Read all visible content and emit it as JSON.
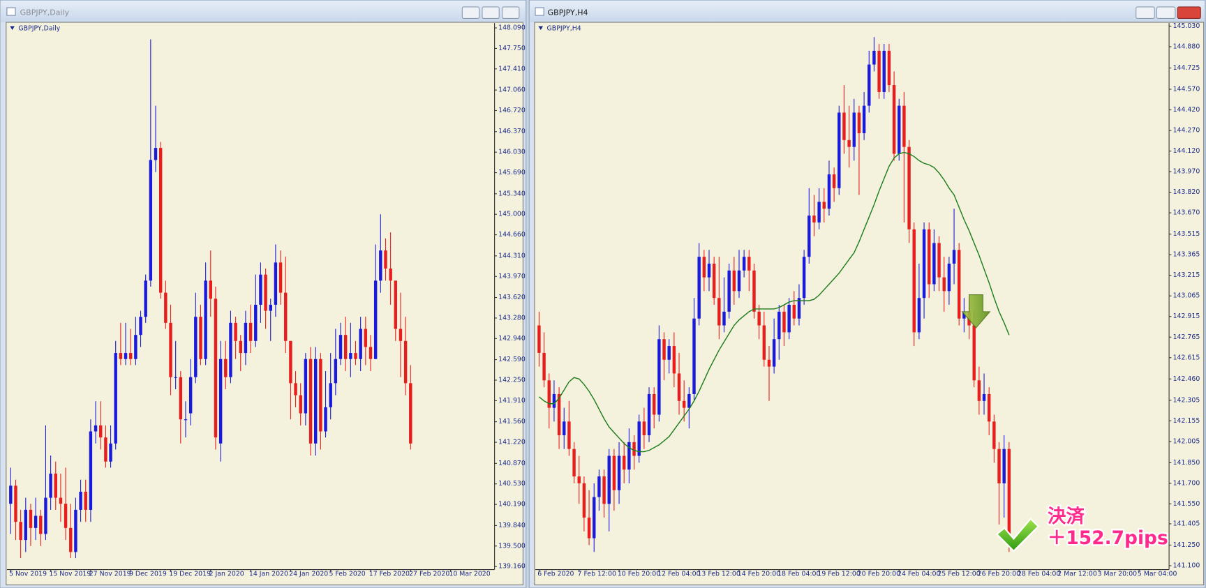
{
  "chart_data": [
    {
      "type": "candlestick",
      "window_title": "GBPJPY,Daily",
      "title": "GBPJPY,Daily",
      "up_color": "#1a1adb",
      "down_color": "#e81d1d",
      "xlim": [
        -0.6,
        96.8
      ],
      "xticks": [
        {
          "value": 0,
          "label": "5 Nov 2019"
        },
        {
          "value": 8,
          "label": "15 Nov 2019"
        },
        {
          "value": 16,
          "label": "27 Nov 2019"
        },
        {
          "value": 24,
          "label": "9 Dec 2019"
        },
        {
          "value": 32,
          "label": "19 Dec 2019"
        },
        {
          "value": 40,
          "label": "2 Jan 2020"
        },
        {
          "value": 48,
          "label": "14 Jan 2020"
        },
        {
          "value": 56,
          "label": "24 Jan 2020"
        },
        {
          "value": 64,
          "label": "5 Feb 2020"
        },
        {
          "value": 72,
          "label": "17 Feb 2020"
        },
        {
          "value": 80,
          "label": "27 Feb 2020"
        },
        {
          "value": 88,
          "label": "10 Mar 2020"
        }
      ],
      "ylim": [
        139.11,
        148.17
      ],
      "yticks": [
        {
          "value": 148.09,
          "label": "148.090"
        },
        {
          "value": 147.75,
          "label": "147.750"
        },
        {
          "value": 147.41,
          "label": "147.410"
        },
        {
          "value": 147.06,
          "label": "147.060"
        },
        {
          "value": 146.72,
          "label": "146.720"
        },
        {
          "value": 146.37,
          "label": "146.370"
        },
        {
          "value": 146.03,
          "label": "146.030"
        },
        {
          "value": 145.69,
          "label": "145.690"
        },
        {
          "value": 145.34,
          "label": "145.340"
        },
        {
          "value": 145.0,
          "label": "145.000"
        },
        {
          "value": 144.66,
          "label": "144.660"
        },
        {
          "value": 144.31,
          "label": "144.310"
        },
        {
          "value": 143.97,
          "label": "143.970"
        },
        {
          "value": 143.62,
          "label": "143.620"
        },
        {
          "value": 143.28,
          "label": "143.280"
        },
        {
          "value": 142.94,
          "label": "142.940"
        },
        {
          "value": 142.59,
          "label": "142.590"
        },
        {
          "value": 142.25,
          "label": "142.250"
        },
        {
          "value": 141.91,
          "label": "141.910"
        },
        {
          "value": 141.56,
          "label": "141.560"
        },
        {
          "value": 141.22,
          "label": "141.220"
        },
        {
          "value": 140.87,
          "label": "140.870"
        },
        {
          "value": 140.53,
          "label": "140.530"
        },
        {
          "value": 140.19,
          "label": "140.190"
        },
        {
          "value": 139.84,
          "label": "139.840"
        },
        {
          "value": 139.5,
          "label": "139.500"
        },
        {
          "value": 139.16,
          "label": "139.160"
        }
      ],
      "open": [
        140.2,
        140.5,
        139.9,
        139.6,
        140.1,
        139.8,
        140.0,
        139.7,
        140.3,
        140.7,
        140.3,
        140.2,
        139.8,
        139.4,
        140.1,
        140.4,
        140.1,
        141.4,
        141.5,
        141.3,
        140.9,
        141.2,
        142.7,
        142.6,
        142.7,
        142.6,
        143.0,
        143.3,
        143.9,
        145.9,
        146.1,
        143.7,
        143.2,
        142.3,
        142.3,
        141.6,
        141.7,
        142.3,
        143.3,
        142.6,
        143.9,
        143.6,
        141.2,
        142.6,
        142.3,
        143.2,
        142.9,
        142.7,
        143.2,
        142.9,
        143.5,
        144.0,
        143.4,
        143.5,
        144.2,
        143.7,
        142.9,
        142.2,
        142.0,
        141.7,
        142.6,
        141.2,
        142.6,
        141.4,
        141.8,
        142.2,
        142.6,
        143.0,
        142.6,
        142.7,
        142.6,
        143.1,
        142.8,
        142.6,
        143.9,
        144.4,
        144.1,
        143.9,
        143.1,
        142.9,
        142.2
      ],
      "high": [
        140.8,
        140.6,
        140.1,
        140.3,
        140.2,
        140.3,
        140.1,
        141.5,
        141.0,
        140.9,
        140.7,
        140.8,
        140.2,
        140.3,
        140.6,
        140.6,
        141.6,
        141.9,
        141.9,
        141.5,
        141.5,
        142.9,
        143.2,
        143.2,
        143.1,
        143.3,
        143.4,
        144.0,
        147.9,
        146.8,
        146.2,
        143.9,
        143.5,
        142.9,
        142.4,
        141.9,
        142.6,
        143.7,
        143.5,
        144.2,
        144.4,
        143.8,
        142.9,
        142.9,
        143.4,
        143.3,
        143.0,
        143.4,
        143.5,
        144.0,
        144.2,
        144.1,
        143.6,
        144.5,
        144.4,
        144.3,
        142.9,
        142.4,
        142.2,
        142.7,
        142.8,
        142.8,
        142.7,
        142.4,
        142.7,
        143.1,
        143.2,
        143.3,
        143.2,
        142.9,
        143.3,
        143.3,
        143.0,
        144.5,
        145.0,
        144.6,
        144.7,
        143.9,
        143.7,
        143.3,
        142.5
      ],
      "low": [
        139.7,
        139.6,
        139.3,
        139.4,
        139.5,
        139.6,
        139.5,
        139.6,
        140.1,
        140.1,
        139.9,
        139.6,
        139.3,
        139.3,
        139.9,
        139.9,
        139.9,
        141.2,
        141.1,
        140.8,
        140.8,
        141.1,
        142.5,
        142.5,
        142.5,
        142.5,
        142.8,
        143.2,
        143.8,
        145.7,
        143.6,
        143.1,
        142.0,
        142.1,
        141.2,
        141.3,
        141.5,
        142.2,
        142.5,
        142.5,
        143.3,
        141.1,
        140.9,
        142.1,
        142.2,
        142.6,
        142.4,
        142.5,
        142.7,
        142.8,
        143.2,
        143.1,
        142.9,
        143.3,
        143.5,
        142.7,
        141.6,
        141.8,
        141.5,
        141.5,
        141.0,
        141.0,
        141.1,
        141.3,
        141.6,
        142.0,
        142.5,
        142.4,
        142.3,
        142.5,
        142.4,
        142.5,
        142.4,
        142.6,
        143.7,
        143.9,
        143.5,
        142.9,
        142.3,
        142.0,
        141.1
      ],
      "close": [
        140.5,
        139.9,
        139.6,
        140.1,
        139.8,
        140.0,
        139.7,
        140.3,
        140.7,
        140.3,
        140.2,
        139.8,
        139.4,
        140.1,
        140.4,
        140.1,
        141.4,
        141.5,
        141.3,
        140.9,
        141.2,
        142.7,
        142.6,
        142.7,
        142.6,
        143.0,
        143.3,
        143.9,
        145.9,
        146.1,
        143.7,
        143.2,
        142.3,
        142.3,
        141.6,
        141.6,
        142.3,
        143.3,
        142.6,
        143.9,
        143.6,
        141.3,
        142.6,
        142.3,
        143.2,
        142.9,
        142.7,
        143.2,
        142.9,
        143.5,
        144.0,
        143.4,
        143.5,
        144.2,
        143.7,
        142.9,
        142.2,
        142.0,
        141.7,
        142.6,
        141.2,
        142.6,
        141.4,
        141.8,
        142.2,
        142.6,
        143.0,
        142.6,
        142.7,
        142.6,
        143.1,
        142.8,
        142.6,
        143.9,
        144.4,
        144.1,
        143.9,
        143.1,
        142.9,
        142.2,
        141.2
      ]
    },
    {
      "type": "candlestick",
      "window_title": "GBPJPY,H4",
      "title": "GBPJPY,H4",
      "up_color": "#1a1adb",
      "down_color": "#e81d1d",
      "xlim": [
        -0.6,
        126.0
      ],
      "xticks": [
        {
          "value": 0,
          "label": "6 Feb 2020"
        },
        {
          "value": 8,
          "label": "7 Feb 12:00"
        },
        {
          "value": 16,
          "label": "10 Feb 20:00"
        },
        {
          "value": 24,
          "label": "12 Feb 04:00"
        },
        {
          "value": 32,
          "label": "13 Feb 12:00"
        },
        {
          "value": 40,
          "label": "14 Feb 20:00"
        },
        {
          "value": 48,
          "label": "18 Feb 04:00"
        },
        {
          "value": 56,
          "label": "19 Feb 12:00"
        },
        {
          "value": 64,
          "label": "20 Feb 20:00"
        },
        {
          "value": 72,
          "label": "24 Feb 04:00"
        },
        {
          "value": 80,
          "label": "25 Feb 12:00"
        },
        {
          "value": 88,
          "label": "26 Feb 20:00"
        },
        {
          "value": 96,
          "label": "28 Feb 04:00"
        },
        {
          "value": 104,
          "label": "2 Mar 12:00"
        },
        {
          "value": 112,
          "label": "3 Mar 20:00"
        },
        {
          "value": 120,
          "label": "5 Mar 04:00"
        }
      ],
      "ylim": [
        141.072,
        145.052
      ],
      "yticks": [
        {
          "value": 145.03,
          "label": "145.030"
        },
        {
          "value": 144.88,
          "label": "144.880"
        },
        {
          "value": 144.725,
          "label": "144.725"
        },
        {
          "value": 144.57,
          "label": "144.570"
        },
        {
          "value": 144.42,
          "label": "144.420"
        },
        {
          "value": 144.27,
          "label": "144.270"
        },
        {
          "value": 144.12,
          "label": "144.120"
        },
        {
          "value": 143.97,
          "label": "143.970"
        },
        {
          "value": 143.82,
          "label": "143.820"
        },
        {
          "value": 143.67,
          "label": "143.670"
        },
        {
          "value": 143.515,
          "label": "143.515"
        },
        {
          "value": 143.365,
          "label": "143.365"
        },
        {
          "value": 143.215,
          "label": "143.215"
        },
        {
          "value": 143.065,
          "label": "143.065"
        },
        {
          "value": 142.915,
          "label": "142.915"
        },
        {
          "value": 142.765,
          "label": "142.765"
        },
        {
          "value": 142.615,
          "label": "142.615"
        },
        {
          "value": 142.46,
          "label": "142.460"
        },
        {
          "value": 142.305,
          "label": "142.305"
        },
        {
          "value": 142.155,
          "label": "142.155"
        },
        {
          "value": 142.005,
          "label": "142.005"
        },
        {
          "value": 141.85,
          "label": "141.850"
        },
        {
          "value": 141.7,
          "label": "141.700"
        },
        {
          "value": 141.55,
          "label": "141.550"
        },
        {
          "value": 141.405,
          "label": "141.405"
        },
        {
          "value": 141.25,
          "label": "141.250"
        },
        {
          "value": 141.1,
          "label": "141.100"
        }
      ],
      "open": [
        142.85,
        142.65,
        142.45,
        142.25,
        142.35,
        142.05,
        142.15,
        141.95,
        141.75,
        141.7,
        141.45,
        141.3,
        141.6,
        141.75,
        141.55,
        141.9,
        141.65,
        141.9,
        141.8,
        142.0,
        141.9,
        142.15,
        142.05,
        142.35,
        142.2,
        142.75,
        142.6,
        142.7,
        142.5,
        142.3,
        142.25,
        142.35,
        142.9,
        143.35,
        143.2,
        143.3,
        143.05,
        142.85,
        142.95,
        143.25,
        143.1,
        143.25,
        143.35,
        143.25,
        142.95,
        142.85,
        142.6,
        142.55,
        142.75,
        142.95,
        142.8,
        143.0,
        142.9,
        143.05,
        143.35,
        143.65,
        143.6,
        143.75,
        143.7,
        143.95,
        143.85,
        144.4,
        144.2,
        144.15,
        144.4,
        144.25,
        144.45,
        144.75,
        144.85,
        144.55,
        144.85,
        144.6,
        144.1,
        144.45,
        144.15,
        143.55,
        142.8,
        143.05,
        143.55,
        143.15,
        143.45,
        143.2,
        143.1,
        143.3,
        143.4,
        142.9,
        142.95,
        142.85,
        142.45,
        142.3,
        142.35,
        142.15,
        141.95,
        141.7,
        141.95
      ],
      "high": [
        142.95,
        142.8,
        142.5,
        142.45,
        142.4,
        142.25,
        142.3,
        142.0,
        141.9,
        141.75,
        141.65,
        141.7,
        141.8,
        141.8,
        141.95,
        141.95,
        142.0,
        142.0,
        142.1,
        142.05,
        142.2,
        142.25,
        142.4,
        142.4,
        142.85,
        142.8,
        142.75,
        142.8,
        142.65,
        142.45,
        142.4,
        143.05,
        143.45,
        143.4,
        143.4,
        143.35,
        143.35,
        143.2,
        143.3,
        143.35,
        143.4,
        143.4,
        143.4,
        143.3,
        143.0,
        142.95,
        142.7,
        142.9,
        143.0,
        143.0,
        143.05,
        143.1,
        143.15,
        143.4,
        143.85,
        143.8,
        143.85,
        143.85,
        144.05,
        144.0,
        144.45,
        144.6,
        144.45,
        144.5,
        144.45,
        144.55,
        144.85,
        144.95,
        144.9,
        144.9,
        144.9,
        144.7,
        144.5,
        144.55,
        144.2,
        143.6,
        143.3,
        143.6,
        143.6,
        143.55,
        143.5,
        143.35,
        143.35,
        143.7,
        143.45,
        143.05,
        143.05,
        142.95,
        142.55,
        142.5,
        142.4,
        142.2,
        142.0,
        142.05,
        142.0
      ],
      "low": [
        142.55,
        142.4,
        142.1,
        142.15,
        141.95,
        141.95,
        141.9,
        141.7,
        141.55,
        141.35,
        141.25,
        141.2,
        141.5,
        141.45,
        141.35,
        141.5,
        141.55,
        141.7,
        141.7,
        141.8,
        141.85,
        141.95,
        142.0,
        142.1,
        142.15,
        142.45,
        142.5,
        142.4,
        142.2,
        142.15,
        142.1,
        142.3,
        142.85,
        143.1,
        143.1,
        143.0,
        142.75,
        142.8,
        142.9,
        143.0,
        143.05,
        143.2,
        143.1,
        142.9,
        142.75,
        142.55,
        142.3,
        142.5,
        142.6,
        142.7,
        142.75,
        142.85,
        142.85,
        143.0,
        143.3,
        143.5,
        143.55,
        143.6,
        143.65,
        143.75,
        143.8,
        144.1,
        144.0,
        144.05,
        143.8,
        144.2,
        144.4,
        144.7,
        144.5,
        144.5,
        144.55,
        144.05,
        144.05,
        143.6,
        143.45,
        142.7,
        142.75,
        142.9,
        143.05,
        143.1,
        143.1,
        142.95,
        143.0,
        143.15,
        142.85,
        142.8,
        142.75,
        142.4,
        142.2,
        142.2,
        142.05,
        141.85,
        141.4,
        141.45,
        141.2
      ],
      "close": [
        142.65,
        142.45,
        142.25,
        142.35,
        142.05,
        142.15,
        141.95,
        141.75,
        141.7,
        141.45,
        141.3,
        141.6,
        141.75,
        141.55,
        141.9,
        141.65,
        141.9,
        141.8,
        142.0,
        141.9,
        142.15,
        142.05,
        142.35,
        142.2,
        142.75,
        142.6,
        142.7,
        142.5,
        142.3,
        142.25,
        142.35,
        142.9,
        143.35,
        143.2,
        143.3,
        143.05,
        142.85,
        142.95,
        143.25,
        143.1,
        143.25,
        143.35,
        143.25,
        142.95,
        142.85,
        142.6,
        142.55,
        142.75,
        142.95,
        142.8,
        143.0,
        142.9,
        143.05,
        143.35,
        143.65,
        143.6,
        143.75,
        143.7,
        143.95,
        143.85,
        144.4,
        144.2,
        144.15,
        144.4,
        144.25,
        144.45,
        144.75,
        144.85,
        144.55,
        144.85,
        144.6,
        144.1,
        144.45,
        144.15,
        143.55,
        142.8,
        143.05,
        143.55,
        143.15,
        143.45,
        143.2,
        143.1,
        143.3,
        143.4,
        142.9,
        142.95,
        142.85,
        142.45,
        142.3,
        142.35,
        142.15,
        141.95,
        141.7,
        141.95,
        141.25
      ],
      "ma": {
        "color": "#1e7d1e",
        "values": [
          142.33,
          142.3,
          142.28,
          142.28,
          142.32,
          142.38,
          142.44,
          142.47,
          142.46,
          142.42,
          142.37,
          142.31,
          142.24,
          142.17,
          142.11,
          142.07,
          142.03,
          141.99,
          141.96,
          141.94,
          141.93,
          141.93,
          141.94,
          141.96,
          141.98,
          142.01,
          142.04,
          142.09,
          142.14,
          142.19,
          142.24,
          142.3,
          142.37,
          142.45,
          142.53,
          142.6,
          142.67,
          142.73,
          142.79,
          142.85,
          142.89,
          142.92,
          142.95,
          142.97,
          142.97,
          142.97,
          142.97,
          142.97,
          142.98,
          143.0,
          143.02,
          143.03,
          143.03,
          143.03,
          143.03,
          143.04,
          143.07,
          143.11,
          143.15,
          143.19,
          143.23,
          143.28,
          143.33,
          143.38,
          143.46,
          143.55,
          143.64,
          143.73,
          143.83,
          143.92,
          144.01,
          144.07,
          144.1,
          144.11,
          144.1,
          144.08,
          144.05,
          144.03,
          144.02,
          144.0,
          143.96,
          143.91,
          143.85,
          143.8,
          143.71,
          143.62,
          143.54,
          143.45,
          143.36,
          143.26,
          143.16,
          143.05,
          142.95,
          142.87,
          142.78
        ]
      },
      "annotations": [
        "決済",
        "＋152.7pips"
      ]
    }
  ]
}
